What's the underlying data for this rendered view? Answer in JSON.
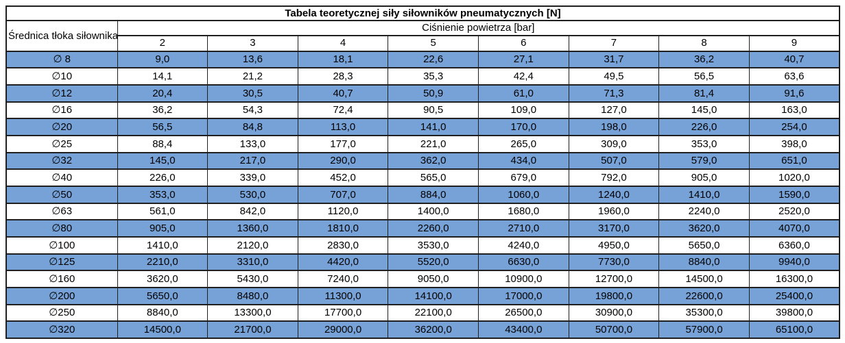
{
  "title": "Tabela teoretycznej siły siłowników pneumatycznych [N]",
  "table": {
    "row_header": "Średnica tłoka siłownika",
    "column_group_header": "Ciśnienie powietrza [bar]",
    "pressure_columns": [
      "2",
      "3",
      "4",
      "5",
      "6",
      "7",
      "8",
      "9"
    ],
    "rows": [
      {
        "diameter": "∅ 8",
        "values": [
          "9,0",
          "13,6",
          "18,1",
          "22,6",
          "27,1",
          "31,7",
          "36,2",
          "40,7"
        ]
      },
      {
        "diameter": "∅10",
        "values": [
          "14,1",
          "21,2",
          "28,3",
          "35,3",
          "42,4",
          "49,5",
          "56,5",
          "63,6"
        ]
      },
      {
        "diameter": "∅12",
        "values": [
          "20,4",
          "30,5",
          "40,7",
          "50,9",
          "61,0",
          "71,3",
          "81,4",
          "91,6"
        ]
      },
      {
        "diameter": "∅16",
        "values": [
          "36,2",
          "54,3",
          "72,4",
          "90,5",
          "109,0",
          "127,0",
          "145,0",
          "163,0"
        ]
      },
      {
        "diameter": "∅20",
        "values": [
          "56,5",
          "84,8",
          "113,0",
          "141,0",
          "170,0",
          "198,0",
          "226,0",
          "254,0"
        ]
      },
      {
        "diameter": "∅25",
        "values": [
          "88,4",
          "133,0",
          "177,0",
          "221,0",
          "265,0",
          "309,0",
          "353,0",
          "398,0"
        ]
      },
      {
        "diameter": "∅32",
        "values": [
          "145,0",
          "217,0",
          "290,0",
          "362,0",
          "434,0",
          "507,0",
          "579,0",
          "651,0"
        ]
      },
      {
        "diameter": "∅40",
        "values": [
          "226,0",
          "339,0",
          "452,0",
          "565,0",
          "679,0",
          "792,0",
          "905,0",
          "1020,0"
        ]
      },
      {
        "diameter": "∅50",
        "values": [
          "353,0",
          "530,0",
          "707,0",
          "884,0",
          "1060,0",
          "1240,0",
          "1410,0",
          "1590,0"
        ]
      },
      {
        "diameter": "∅63",
        "values": [
          "561,0",
          "842,0",
          "1120,0",
          "1400,0",
          "1680,0",
          "1960,0",
          "2240,0",
          "2520,0"
        ]
      },
      {
        "diameter": "∅80",
        "values": [
          "905,0",
          "1360,0",
          "1810,0",
          "2260,0",
          "2710,0",
          "3170,0",
          "3620,0",
          "4070,0"
        ]
      },
      {
        "diameter": "∅100",
        "values": [
          "1410,0",
          "2120,0",
          "2830,0",
          "3530,0",
          "4240,0",
          "4950,0",
          "5650,0",
          "6360,0"
        ]
      },
      {
        "diameter": "∅125",
        "values": [
          "2210,0",
          "3310,0",
          "4420,0",
          "5520,0",
          "6630,0",
          "7730,0",
          "8840,0",
          "9940,0"
        ]
      },
      {
        "diameter": "∅160",
        "values": [
          "3620,0",
          "5430,0",
          "7240,0",
          "9050,0",
          "10900,0",
          "12700,0",
          "14500,0",
          "16300,0"
        ]
      },
      {
        "diameter": "∅200",
        "values": [
          "5650,0",
          "8480,0",
          "11300,0",
          "14100,0",
          "17000,0",
          "19800,0",
          "22600,0",
          "25400,0"
        ]
      },
      {
        "diameter": "∅250",
        "values": [
          "8840,0",
          "13300,0",
          "17700,0",
          "22100,0",
          "26500,0",
          "30900,0",
          "35300,0",
          "39800,0"
        ]
      },
      {
        "diameter": "∅320",
        "values": [
          "14500,0",
          "21700,0",
          "29000,0",
          "36200,0",
          "43400,0",
          "50700,0",
          "57900,0",
          "65100,0"
        ]
      }
    ]
  },
  "colors": {
    "row_highlight": "#76A2D7",
    "row_plain": "#FFFFFF",
    "border": "#1F1F1F",
    "text": "#000000"
  },
  "chart_data": {
    "type": "table",
    "title": "Tabela teoretycznej siły siłowników pneumatycznych [N]",
    "row_axis_label": "Średnica tłoka siłownika",
    "column_axis_label": "Ciśnienie powietrza [bar]",
    "pressures_bar": [
      2,
      3,
      4,
      5,
      6,
      7,
      8,
      9
    ],
    "unit": "N",
    "rows": [
      {
        "piston_diameter_mm": 8,
        "forces_N": [
          9.0,
          13.6,
          18.1,
          22.6,
          27.1,
          31.7,
          36.2,
          40.7
        ]
      },
      {
        "piston_diameter_mm": 10,
        "forces_N": [
          14.1,
          21.2,
          28.3,
          35.3,
          42.4,
          49.5,
          56.5,
          63.6
        ]
      },
      {
        "piston_diameter_mm": 12,
        "forces_N": [
          20.4,
          30.5,
          40.7,
          50.9,
          61.0,
          71.3,
          81.4,
          91.6
        ]
      },
      {
        "piston_diameter_mm": 16,
        "forces_N": [
          36.2,
          54.3,
          72.4,
          90.5,
          109.0,
          127.0,
          145.0,
          163.0
        ]
      },
      {
        "piston_diameter_mm": 20,
        "forces_N": [
          56.5,
          84.8,
          113.0,
          141.0,
          170.0,
          198.0,
          226.0,
          254.0
        ]
      },
      {
        "piston_diameter_mm": 25,
        "forces_N": [
          88.4,
          133.0,
          177.0,
          221.0,
          265.0,
          309.0,
          353.0,
          398.0
        ]
      },
      {
        "piston_diameter_mm": 32,
        "forces_N": [
          145.0,
          217.0,
          290.0,
          362.0,
          434.0,
          507.0,
          579.0,
          651.0
        ]
      },
      {
        "piston_diameter_mm": 40,
        "forces_N": [
          226.0,
          339.0,
          452.0,
          565.0,
          679.0,
          792.0,
          905.0,
          1020.0
        ]
      },
      {
        "piston_diameter_mm": 50,
        "forces_N": [
          353.0,
          530.0,
          707.0,
          884.0,
          1060.0,
          1240.0,
          1410.0,
          1590.0
        ]
      },
      {
        "piston_diameter_mm": 63,
        "forces_N": [
          561.0,
          842.0,
          1120.0,
          1400.0,
          1680.0,
          1960.0,
          2240.0,
          2520.0
        ]
      },
      {
        "piston_diameter_mm": 80,
        "forces_N": [
          905.0,
          1360.0,
          1810.0,
          2260.0,
          2710.0,
          3170.0,
          3620.0,
          4070.0
        ]
      },
      {
        "piston_diameter_mm": 100,
        "forces_N": [
          1410.0,
          2120.0,
          2830.0,
          3530.0,
          4240.0,
          4950.0,
          5650.0,
          6360.0
        ]
      },
      {
        "piston_diameter_mm": 125,
        "forces_N": [
          2210.0,
          3310.0,
          4420.0,
          5520.0,
          6630.0,
          7730.0,
          8840.0,
          9940.0
        ]
      },
      {
        "piston_diameter_mm": 160,
        "forces_N": [
          3620.0,
          5430.0,
          7240.0,
          9050.0,
          10900.0,
          12700.0,
          14500.0,
          16300.0
        ]
      },
      {
        "piston_diameter_mm": 200,
        "forces_N": [
          5650.0,
          8480.0,
          11300.0,
          14100.0,
          17000.0,
          19800.0,
          22600.0,
          25400.0
        ]
      },
      {
        "piston_diameter_mm": 250,
        "forces_N": [
          8840.0,
          13300.0,
          17700.0,
          22100.0,
          26500.0,
          30900.0,
          35300.0,
          39800.0
        ]
      },
      {
        "piston_diameter_mm": 320,
        "forces_N": [
          14500.0,
          21700.0,
          29000.0,
          36200.0,
          43400.0,
          50700.0,
          57900.0,
          65100.0
        ]
      }
    ]
  }
}
